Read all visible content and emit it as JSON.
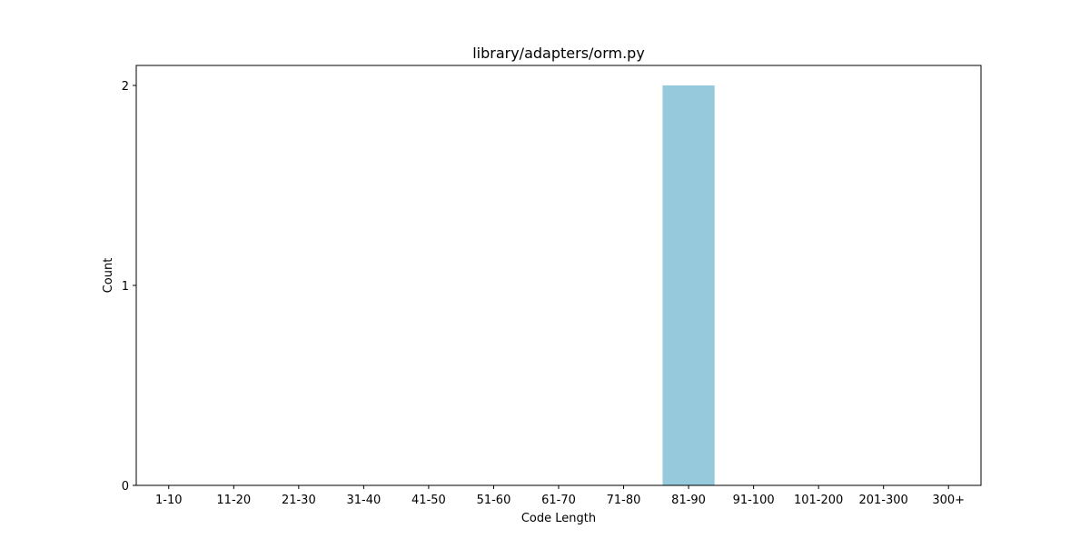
{
  "chart_data": {
    "type": "bar",
    "title": "library/adapters/orm.py",
    "xlabel": "Code Length",
    "ylabel": "Count",
    "categories": [
      "1-10",
      "11-20",
      "21-30",
      "31-40",
      "41-50",
      "51-60",
      "61-70",
      "71-80",
      "81-90",
      "91-100",
      "101-200",
      "201-300",
      "300+"
    ],
    "values": [
      0,
      0,
      0,
      0,
      0,
      0,
      0,
      0,
      2,
      0,
      0,
      0,
      0
    ],
    "yticks": [
      "0",
      "1",
      "2"
    ],
    "ylim": [
      0,
      2.1
    ],
    "grid": false,
    "legend": false,
    "bar_color": "#96c9dc"
  }
}
